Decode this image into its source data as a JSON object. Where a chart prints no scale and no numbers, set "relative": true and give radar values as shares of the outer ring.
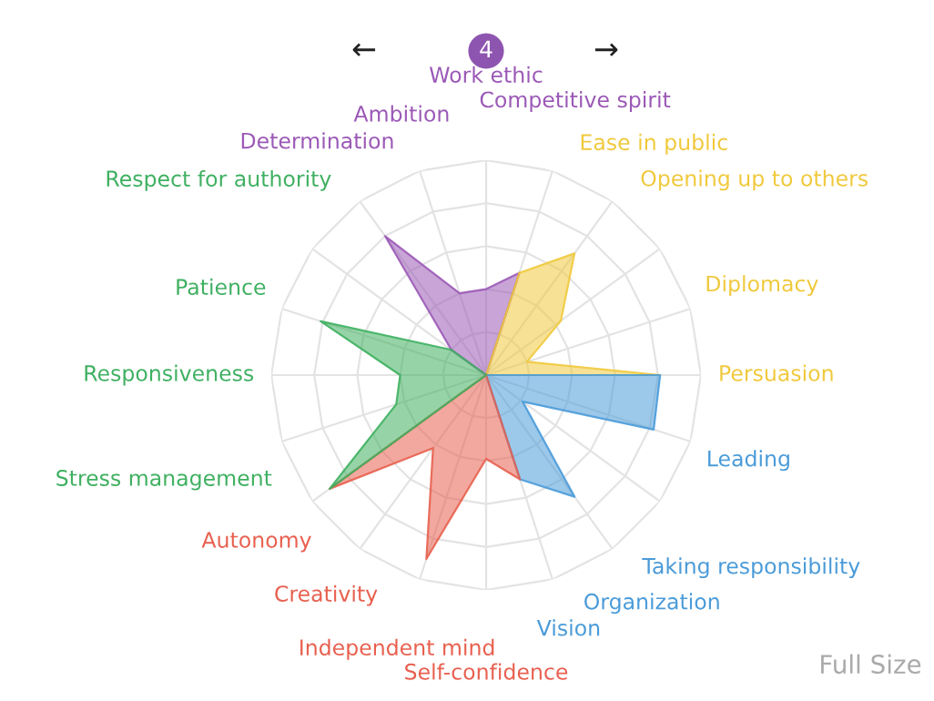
{
  "chart_data": {
    "type": "radar",
    "relative": true,
    "grid": true,
    "categories": [
      "Work ethic",
      "Competitive spirit",
      "Ease in public",
      "Opening up to others",
      "Diplomacy",
      "Persuasion",
      "Leading",
      "Taking responsibility",
      "Organization",
      "Vision",
      "Self-confidence",
      "Independent mind",
      "Creativity",
      "Autonomy",
      "Stress management",
      "Responsiveness",
      "Patience",
      "Respect for authority",
      "Determination",
      "Ambition"
    ],
    "series": [
      {
        "color": "#9b59b6",
        "values": [
          0.4,
          0.5,
          null,
          null,
          null,
          null,
          null,
          null,
          null,
          null,
          null,
          null,
          null,
          null,
          null,
          null,
          null,
          0.2,
          0.8,
          0.4
        ]
      },
      {
        "color": "#f0c93c",
        "values": [
          null,
          0.5,
          0.7,
          0.43,
          0.2,
          0.81,
          null,
          null,
          null,
          null,
          null,
          null,
          null,
          null,
          null,
          null,
          null,
          null,
          null,
          null
        ]
      },
      {
        "color": "#4a9bd9",
        "values": [
          null,
          null,
          null,
          null,
          null,
          0.81,
          0.82,
          0.21,
          0.7,
          0.51,
          null,
          null,
          null,
          null,
          null,
          null,
          null,
          null,
          null,
          null
        ]
      },
      {
        "color": "#e8604f",
        "values": [
          null,
          null,
          null,
          null,
          null,
          null,
          null,
          null,
          null,
          0.51,
          0.39,
          0.9,
          0.42,
          0.9,
          null,
          null,
          null,
          null,
          null,
          null
        ]
      },
      {
        "color": "#3fb061",
        "values": [
          null,
          null,
          null,
          null,
          null,
          null,
          null,
          null,
          null,
          null,
          null,
          null,
          null,
          0.9,
          0.44,
          0.4,
          0.81,
          0.2,
          null,
          null
        ]
      }
    ],
    "annotations": [
      "←",
      "4",
      "→",
      "Full Size"
    ]
  }
}
